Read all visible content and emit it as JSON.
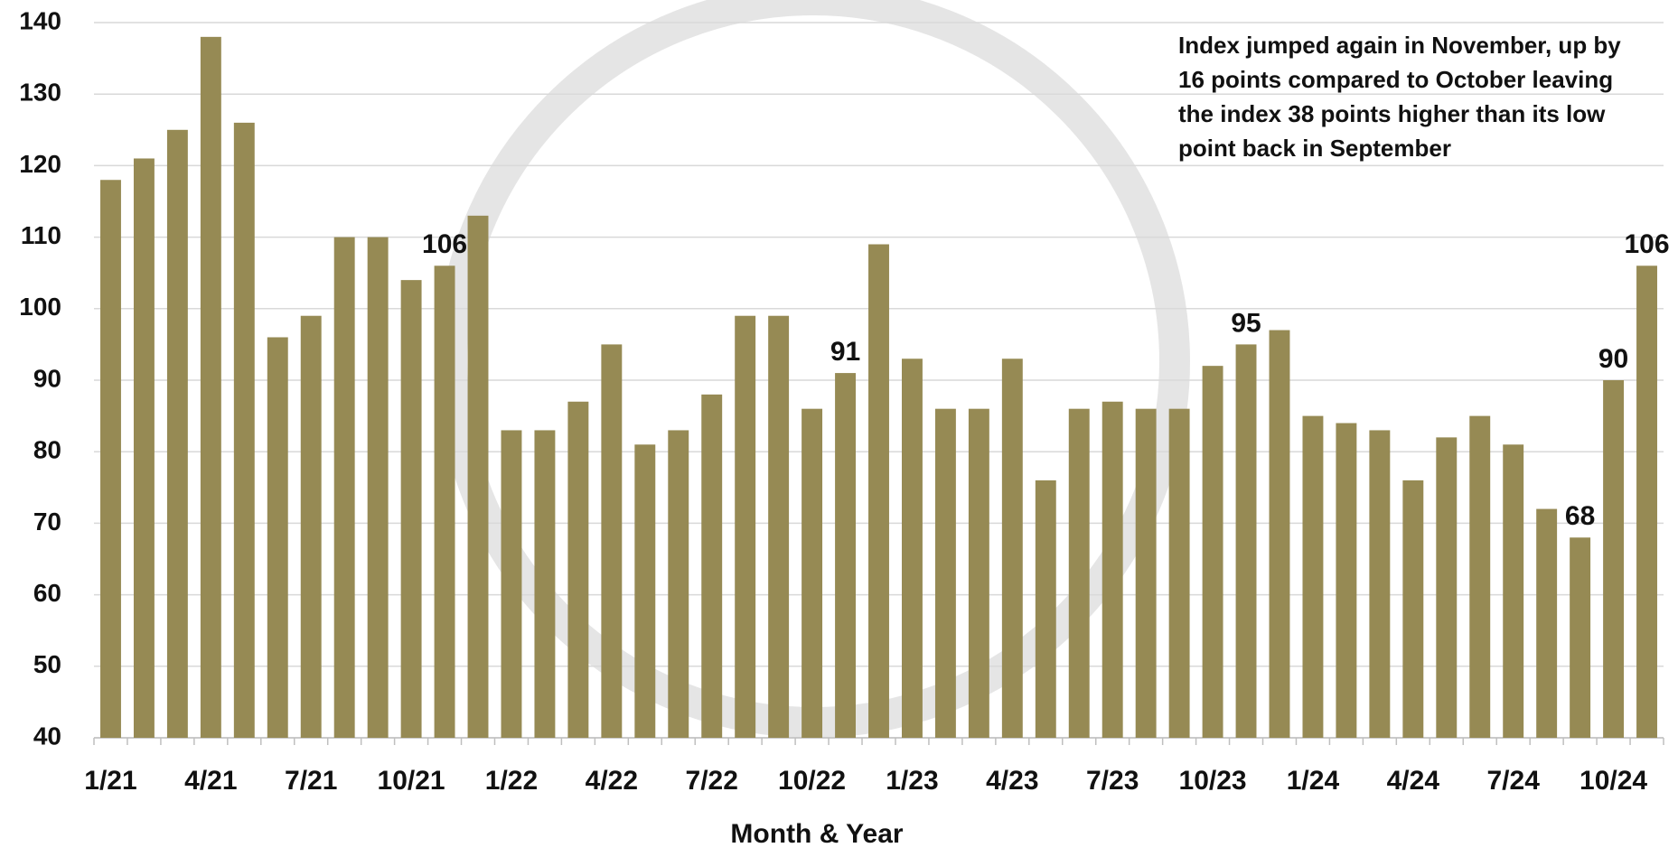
{
  "chart_data": {
    "type": "bar",
    "x_label": "Month & Year",
    "annotation": [
      "Index jumped again in November, up by",
      "16 points compared to October leaving",
      "the index 38 points higher than its low",
      "point back  in September"
    ],
    "categories": [
      "1/21",
      null,
      null,
      "4/21",
      null,
      null,
      "7/21",
      null,
      null,
      "10/21",
      null,
      null,
      "1/22",
      null,
      null,
      "4/22",
      null,
      null,
      "7/22",
      null,
      null,
      "10/22",
      null,
      null,
      "1/23",
      null,
      null,
      "4/23",
      null,
      null,
      "7/23",
      null,
      null,
      "10/23",
      null,
      null,
      "1/24",
      null,
      null,
      "4/24",
      null,
      null,
      "7/24",
      null,
      null,
      "10/24",
      null
    ],
    "values": [
      118,
      121,
      125,
      138,
      126,
      96,
      99,
      110,
      110,
      104,
      106,
      113,
      83,
      83,
      87,
      95,
      81,
      83,
      88,
      99,
      99,
      86,
      91,
      109,
      93,
      86,
      86,
      93,
      76,
      86,
      87,
      86,
      86,
      92,
      95,
      97,
      85,
      84,
      83,
      76,
      82,
      85,
      81,
      72,
      68,
      90,
      106
    ],
    "value_labels": [
      null,
      null,
      null,
      null,
      null,
      null,
      null,
      null,
      null,
      null,
      "106",
      null,
      null,
      null,
      null,
      null,
      null,
      null,
      null,
      null,
      null,
      null,
      "91",
      null,
      null,
      null,
      null,
      null,
      null,
      null,
      null,
      null,
      null,
      null,
      "95",
      null,
      null,
      null,
      null,
      null,
      null,
      null,
      null,
      null,
      "68",
      "90",
      "106"
    ],
    "color": "#968a54",
    "ylim": [
      40,
      140
    ],
    "yticks": [
      40,
      50,
      60,
      70,
      80,
      90,
      100,
      110,
      120,
      130,
      140
    ],
    "grid": true
  }
}
